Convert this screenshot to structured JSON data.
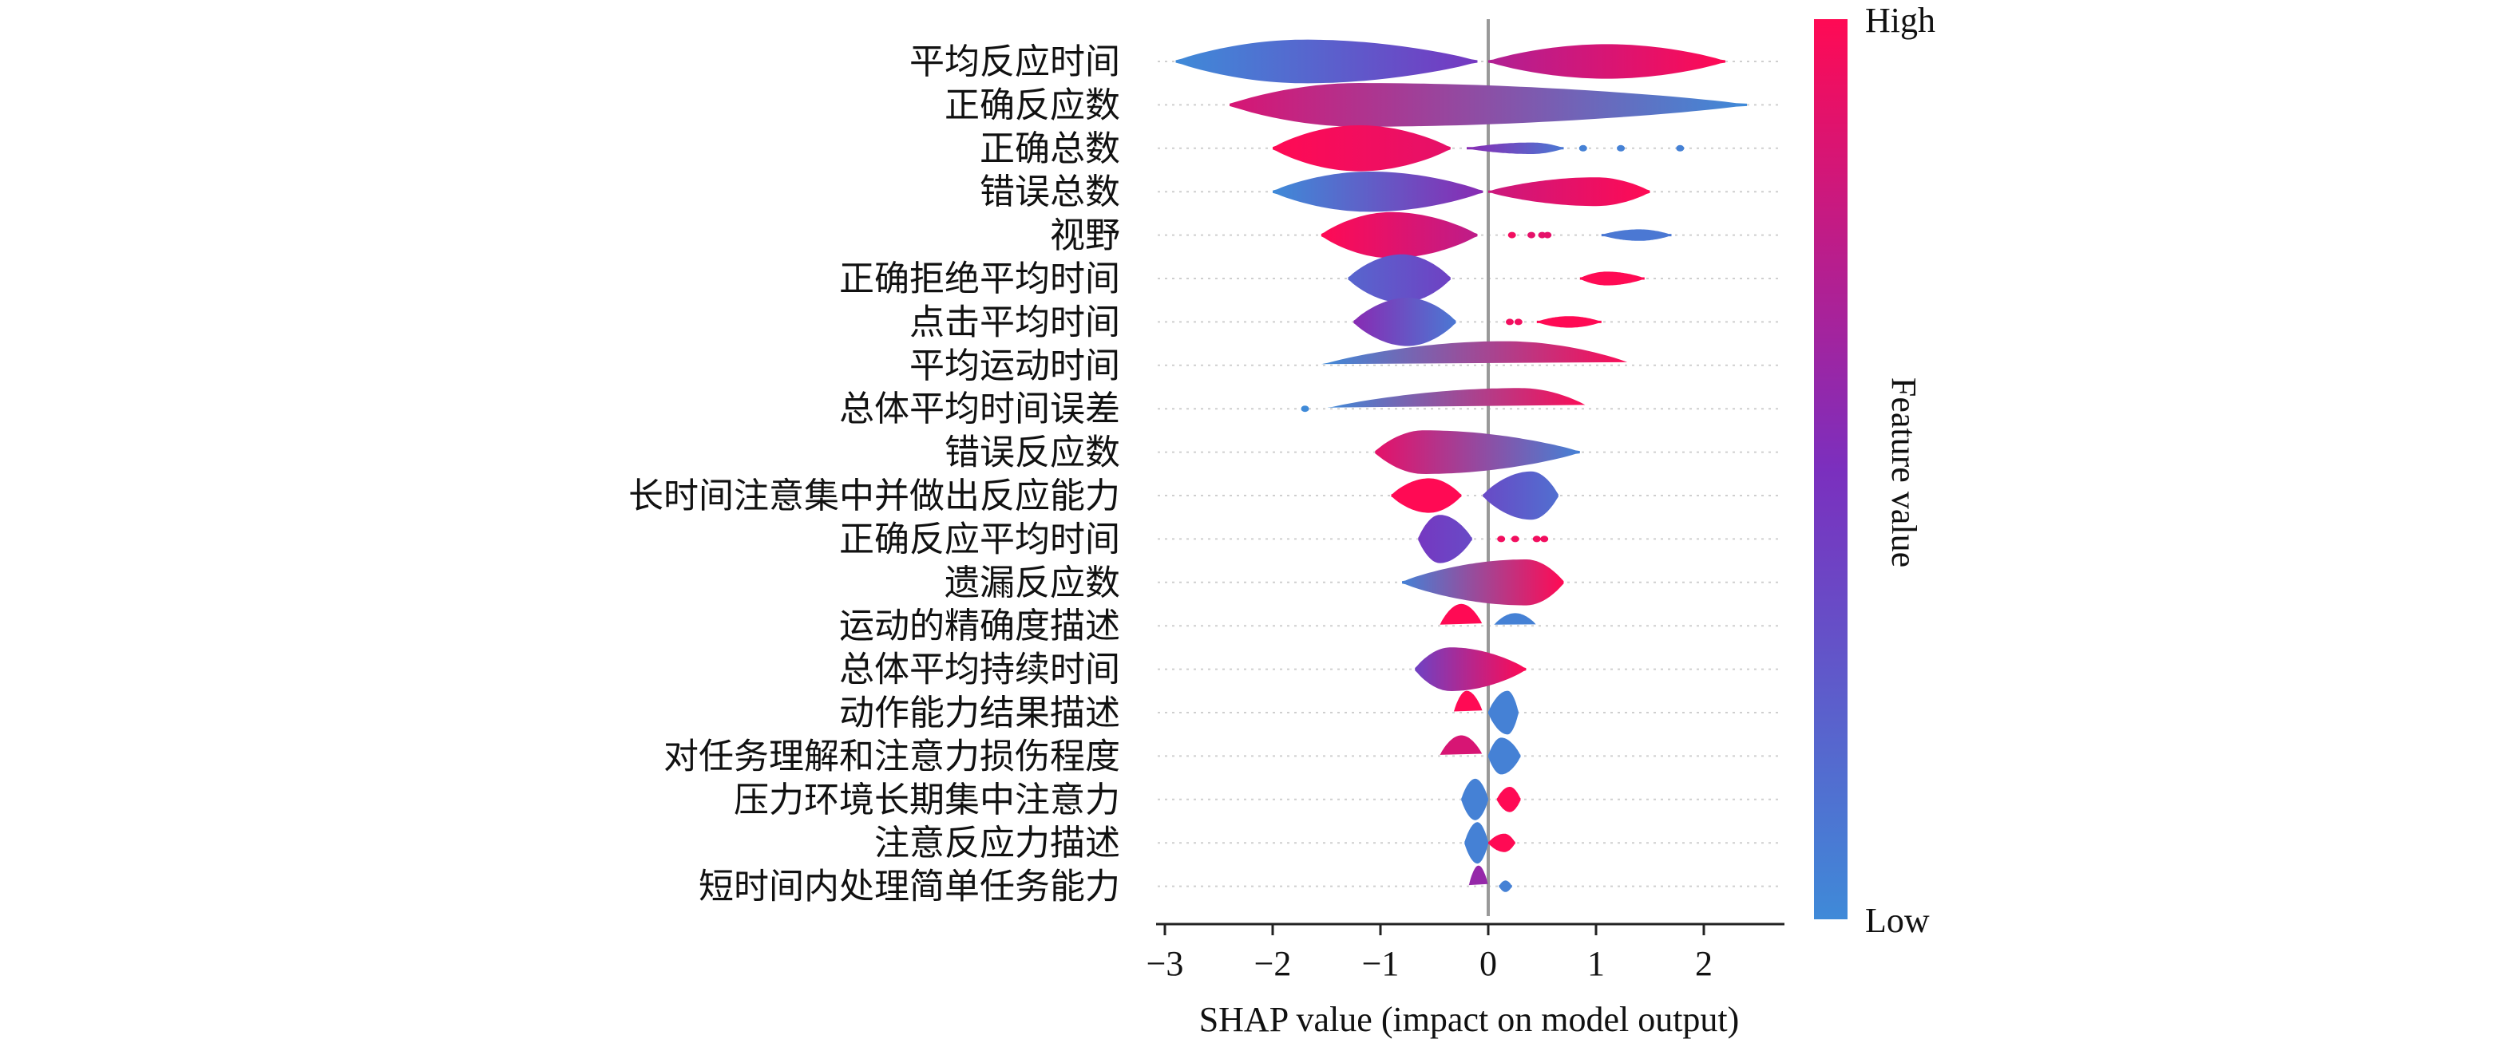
{
  "chart_data": {
    "type": "violin",
    "xlabel": "SHAP value (impact on model output)",
    "xlim": [
      -3.2,
      2.65
    ],
    "xticks": [
      -3,
      -2,
      -1,
      0,
      1,
      2
    ],
    "xtick_labels": [
      "−3",
      "−2",
      "−1",
      "0",
      "1",
      "2"
    ],
    "colorbar": {
      "label": "Feature value",
      "high_label": "High",
      "low_label": "Low",
      "high_color": "#ff0a54",
      "mid_color": "#7b2fbe",
      "low_color": "#3f8ad8"
    },
    "features": [
      {
        "name": "平均反应时间",
        "segments": [
          {
            "start": -2.9,
            "end": -0.1,
            "w": 0.38,
            "peak": -1.7,
            "c0": 0.0,
            "c1": 0.45
          },
          {
            "start": 0.0,
            "end": 2.2,
            "w": 0.3,
            "peak": 1.1,
            "c0": 0.7,
            "c1": 1.0
          }
        ]
      },
      {
        "name": "正确反应数",
        "segments": [
          {
            "start": -2.4,
            "end": 2.4,
            "w": 0.38,
            "peak": -1.2,
            "c0": 0.85,
            "c1": 0.0
          }
        ]
      },
      {
        "name": "正确总数",
        "segments": [
          {
            "start": -2.0,
            "end": -0.35,
            "w": 0.4,
            "peak": -1.2,
            "c0": 1.0,
            "c1": 0.9
          },
          {
            "start": -0.2,
            "end": 0.7,
            "w": 0.1,
            "peak": 0.4,
            "c0": 0.55,
            "c1": 0.1
          }
        ],
        "dots": [
          {
            "x": 0.88,
            "c": 0.05
          },
          {
            "x": 1.23,
            "c": 0.05
          },
          {
            "x": 1.78,
            "c": 0.05
          }
        ]
      },
      {
        "name": "错误总数",
        "segments": [
          {
            "start": -2.0,
            "end": -0.05,
            "w": 0.35,
            "peak": -1.1,
            "c0": 0.0,
            "c1": 0.55
          },
          {
            "start": 0.0,
            "end": 1.5,
            "w": 0.25,
            "peak": 1.0,
            "c0": 0.8,
            "c1": 1.0
          }
        ]
      },
      {
        "name": "视野",
        "segments": [
          {
            "start": -1.55,
            "end": -0.1,
            "w": 0.4,
            "peak": -0.9,
            "c0": 1.0,
            "c1": 0.75
          },
          {
            "start": 1.05,
            "end": 1.7,
            "w": 0.1,
            "peak": 1.4,
            "c0": 0.1,
            "c1": 0.1
          }
        ],
        "dots": [
          {
            "x": 0.22,
            "c": 0.95
          },
          {
            "x": 0.4,
            "c": 0.9
          },
          {
            "x": 0.5,
            "c": 0.9
          },
          {
            "x": 0.55,
            "c": 0.9
          }
        ]
      },
      {
        "name": "正确拒绝平均时间",
        "segments": [
          {
            "start": -1.3,
            "end": -0.35,
            "w": 0.42,
            "peak": -0.8,
            "c0": 0.2,
            "c1": 0.4
          },
          {
            "start": 0.85,
            "end": 1.45,
            "w": 0.12,
            "peak": 1.1,
            "c0": 1.0,
            "c1": 1.0
          }
        ]
      },
      {
        "name": "点击平均时间",
        "segments": [
          {
            "start": -1.25,
            "end": -0.3,
            "w": 0.42,
            "peak": -0.75,
            "c0": 0.55,
            "c1": 0.1
          },
          {
            "start": 0.45,
            "end": 1.05,
            "w": 0.1,
            "peak": 0.75,
            "c0": 1.0,
            "c1": 1.0
          }
        ],
        "dots": [
          {
            "x": 0.2,
            "c": 0.95
          },
          {
            "x": 0.28,
            "c": 0.95
          }
        ]
      },
      {
        "name": "平均运动时间",
        "segments": [
          {
            "start": -1.55,
            "end": 1.35,
            "w": 0.42,
            "peak": 0.15,
            "c0": 0.0,
            "c1": 1.0
          }
        ]
      },
      {
        "name": "总体平均时间误差",
        "segments": [
          {
            "start": -1.5,
            "end": 0.95,
            "w": 0.36,
            "peak": 0.3,
            "c0": 0.0,
            "c1": 1.0
          }
        ],
        "dots": [
          {
            "x": -1.7,
            "c": 0.0
          }
        ]
      },
      {
        "name": "错误反应数",
        "segments": [
          {
            "start": -1.05,
            "end": 0.85,
            "w": 0.38,
            "peak": -0.6,
            "c0": 0.9,
            "c1": 0.05
          }
        ]
      },
      {
        "name": "长时间注意集中并做出反应能力",
        "segments": [
          {
            "start": -0.9,
            "end": -0.25,
            "w": 0.3,
            "peak": -0.55,
            "c0": 1.0,
            "c1": 1.0
          },
          {
            "start": -0.05,
            "end": 0.65,
            "w": 0.42,
            "peak": 0.4,
            "c0": 0.35,
            "c1": 0.15
          }
        ]
      },
      {
        "name": "正确反应平均时间",
        "segments": [
          {
            "start": -0.65,
            "end": -0.15,
            "w": 0.42,
            "peak": -0.45,
            "c0": 0.45,
            "c1": 0.35
          }
        ],
        "dots": [
          {
            "x": 0.12,
            "c": 0.95
          },
          {
            "x": 0.25,
            "c": 0.95
          },
          {
            "x": 0.45,
            "c": 0.95
          },
          {
            "x": 0.52,
            "c": 0.95
          }
        ]
      },
      {
        "name": "遗漏反应数",
        "segments": [
          {
            "start": -0.8,
            "end": 0.7,
            "w": 0.4,
            "peak": 0.35,
            "c0": 0.05,
            "c1": 1.0
          }
        ]
      },
      {
        "name": "运动的精确度描述",
        "segments": [
          {
            "start": -0.45,
            "end": -0.05,
            "w": 0.38,
            "peak": -0.25,
            "c0": 1.0,
            "c1": 1.0
          },
          {
            "start": 0.05,
            "end": 0.45,
            "w": 0.22,
            "peak": 0.25,
            "c0": 0.05,
            "c1": 0.05
          }
        ]
      },
      {
        "name": "总体平均持续时间",
        "segments": [
          {
            "start": -0.68,
            "end": 0.35,
            "w": 0.38,
            "peak": -0.35,
            "c0": 0.4,
            "c1": 1.0
          }
        ]
      },
      {
        "name": "动作能力结果描述",
        "segments": [
          {
            "start": -0.32,
            "end": -0.05,
            "w": 0.38,
            "peak": -0.2,
            "c0": 1.0,
            "c1": 1.0
          },
          {
            "start": 0.0,
            "end": 0.28,
            "w": 0.38,
            "peak": 0.18,
            "c0": 0.05,
            "c1": 0.05
          }
        ]
      },
      {
        "name": "对任务理解和注意力损伤程度",
        "segments": [
          {
            "start": -0.45,
            "end": -0.05,
            "w": 0.36,
            "peak": -0.25,
            "c0": 0.85,
            "c1": 0.85
          },
          {
            "start": 0.0,
            "end": 0.3,
            "w": 0.32,
            "peak": 0.12,
            "c0": 0.05,
            "c1": 0.05
          }
        ]
      },
      {
        "name": "压力环境长期集中注意力",
        "segments": [
          {
            "start": -0.25,
            "end": 0.0,
            "w": 0.36,
            "peak": -0.12,
            "c0": 0.05,
            "c1": 0.05
          },
          {
            "start": 0.08,
            "end": 0.3,
            "w": 0.22,
            "peak": 0.2,
            "c0": 1.0,
            "c1": 1.0
          }
        ]
      },
      {
        "name": "注意反应力描述",
        "segments": [
          {
            "start": -0.22,
            "end": 0.0,
            "w": 0.36,
            "peak": -0.1,
            "c0": 0.05,
            "c1": 0.05
          },
          {
            "start": 0.0,
            "end": 0.25,
            "w": 0.16,
            "peak": 0.15,
            "c0": 1.0,
            "c1": 1.0
          }
        ]
      },
      {
        "name": "短时间内处理简单任务能力",
        "segments": [
          {
            "start": -0.18,
            "end": 0.0,
            "w": 0.36,
            "peak": -0.09,
            "c0": 0.6,
            "c1": 0.6
          },
          {
            "start": 0.1,
            "end": 0.22,
            "w": 0.1,
            "peak": 0.16,
            "c0": 0.05,
            "c1": 0.05
          }
        ]
      }
    ]
  }
}
